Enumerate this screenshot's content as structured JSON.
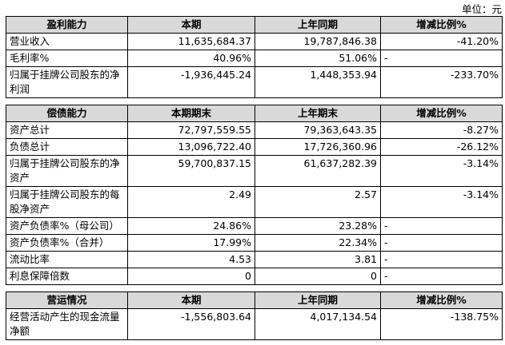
{
  "unit": "单位：元",
  "sections": [
    {
      "header": [
        "盈利能力",
        "本期",
        "上年同期",
        "增减比例%"
      ],
      "rows": [
        [
          "营业收入",
          "11,635,684.37",
          "19,787,846.38",
          "-41.20%"
        ],
        [
          "毛利率%",
          "40.96%",
          "51.06%",
          "-"
        ],
        [
          "归属于挂牌公司股东的净利润",
          "-1,936,445.24",
          "1,448,353.94",
          "-233.70%"
        ]
      ]
    },
    {
      "header": [
        "偿债能力",
        "本期期末",
        "上年期末",
        "增减比例%"
      ],
      "rows": [
        [
          "资产总计",
          "72,797,559.55",
          "79,363,643.35",
          "-8.27%"
        ],
        [
          "负债总计",
          "13,096,722.40",
          "17,726,360.96",
          "-26.12%"
        ],
        [
          "归属于挂牌公司股东的净资产",
          "59,700,837.15",
          "61,637,282.39",
          "-3.14%"
        ],
        [
          "归属于挂牌公司股东的每股净资产",
          "2.49",
          "2.57",
          "-3.14%"
        ],
        [
          "资产负债率%（母公司）",
          "24.86%",
          "23.28%",
          "-"
        ],
        [
          "资产负债率%（合并）",
          "17.99%",
          "22.34%",
          "-"
        ],
        [
          "流动比率",
          "4.53",
          "3.81",
          "-"
        ],
        [
          "利息保障倍数",
          "0",
          "0",
          "-"
        ]
      ]
    },
    {
      "header": [
        "营运情况",
        "本期",
        "上年同期",
        "增减比例%"
      ],
      "rows": [
        [
          "经营活动产生的现金流量净额",
          "-1,556,803.64",
          "4,017,134.54",
          "-138.75%"
        ]
      ]
    }
  ]
}
